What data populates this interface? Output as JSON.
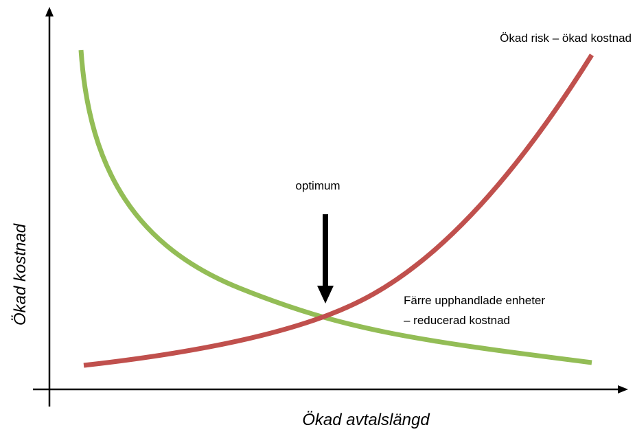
{
  "labels": {
    "risk": "Ökad risk – ökad kostnad",
    "optimum": "optimum",
    "fewer_line1": "Färre upphandlade enheter",
    "fewer_line2": "– reducerad kostnad"
  },
  "axes": {
    "y_label": "Ökad kostnad",
    "x_label": "Ökad avtalslängd"
  }
}
